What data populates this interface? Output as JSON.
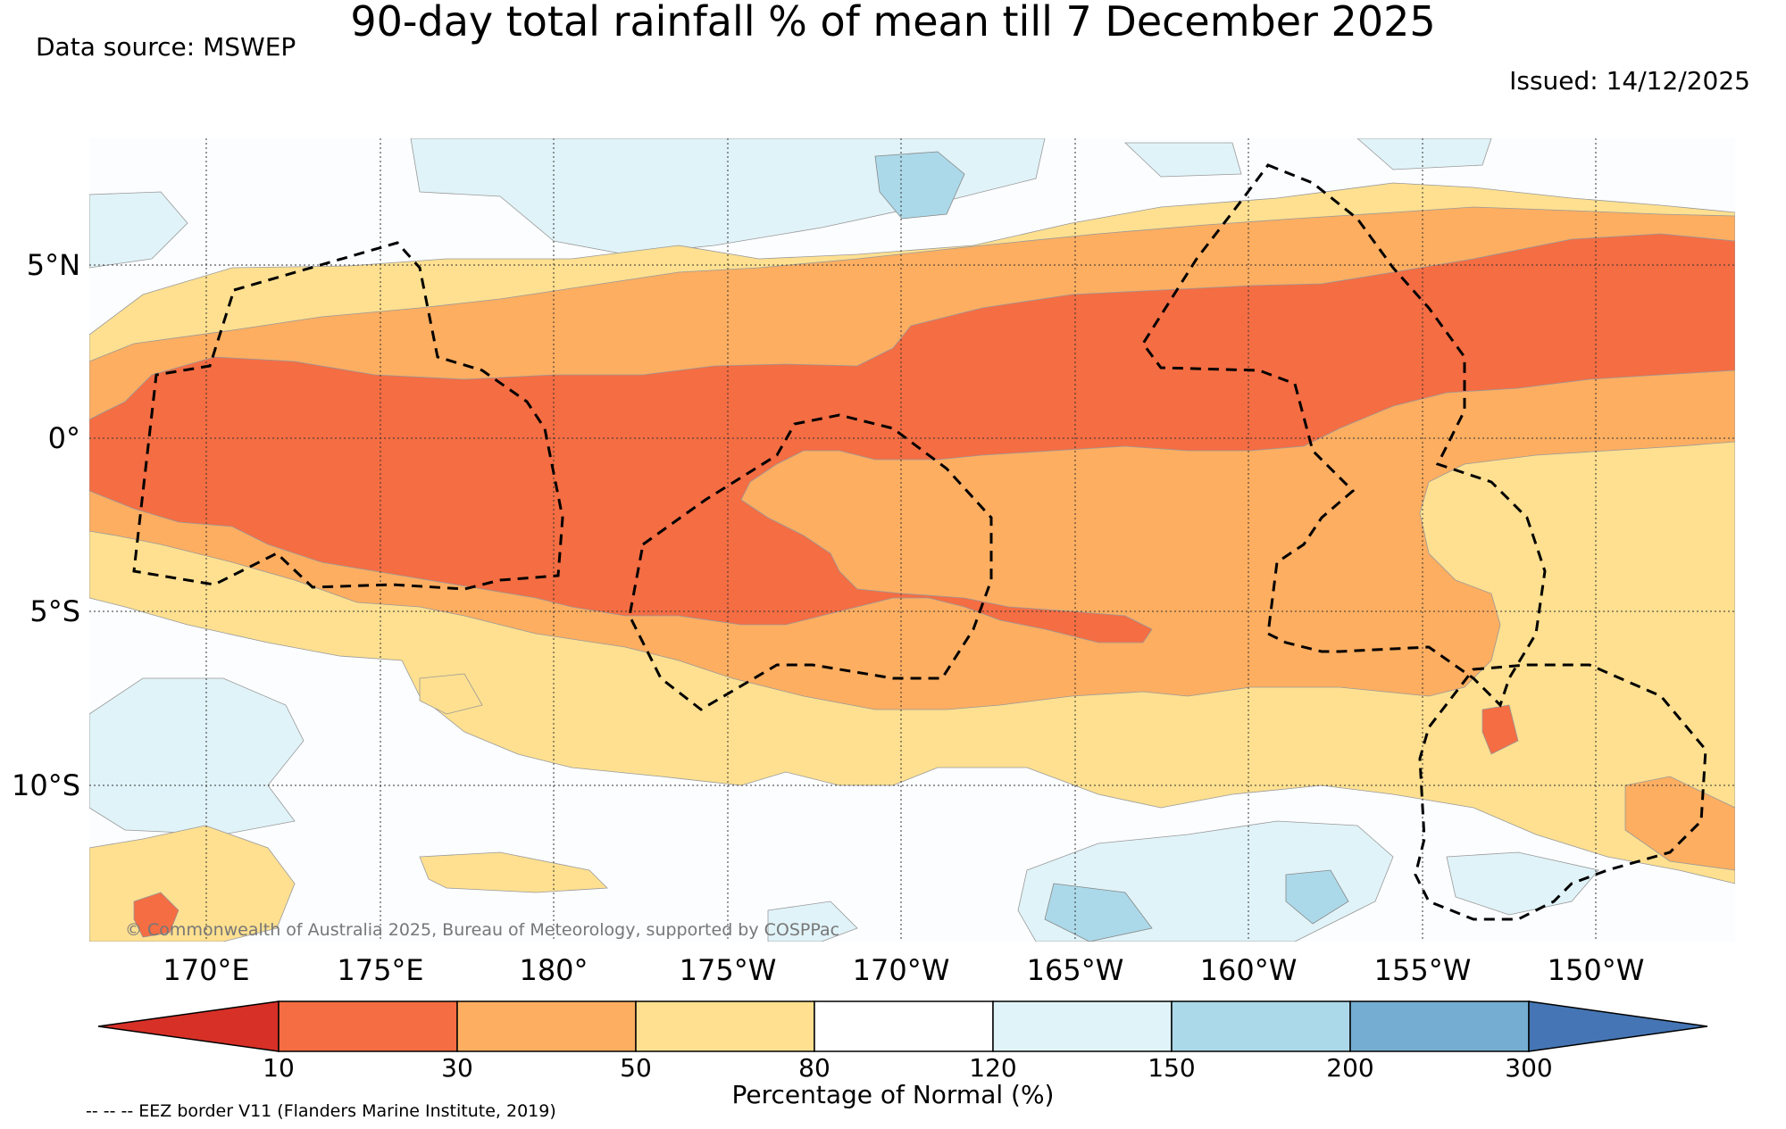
{
  "header": {
    "title": "90-day total rainfall % of mean till 7 December 2025",
    "source": "Data source: MSWEP",
    "issued": "Issued: 14/12/2025"
  },
  "axes": {
    "lat_labels": [
      "5°N",
      "0°",
      "5°S",
      "10°S"
    ],
    "lon_labels": [
      "170°E",
      "175°E",
      "180°",
      "175°W",
      "170°W",
      "165°W",
      "160°W",
      "155°W",
      "150°W"
    ]
  },
  "colorbar": {
    "title": "Percentage of Normal (%)",
    "labels": [
      "10",
      "30",
      "50",
      "80",
      "120",
      "150",
      "200",
      "300"
    ],
    "colors": [
      "#d73027",
      "#f46d43",
      "#fdae61",
      "#fee090",
      "#ffffff",
      "#e0f3f8",
      "#abd9e9",
      "#74add1",
      "#4575b4"
    ]
  },
  "notes": {
    "copyright": "© Commonwealth of Australia 2025, Bureau of Meteorology, supported by COSPPac",
    "eez": "-- -- -- EEZ border V11 (Flanders Marine Institute, 2019)"
  },
  "map_colors": {
    "above_120": "#e0f3f8",
    "above_150": "#abd9e9",
    "normal": "#fbfdff",
    "below_80": "#fee090",
    "below_50": "#fdae61",
    "below_30": "#f46d43"
  }
}
